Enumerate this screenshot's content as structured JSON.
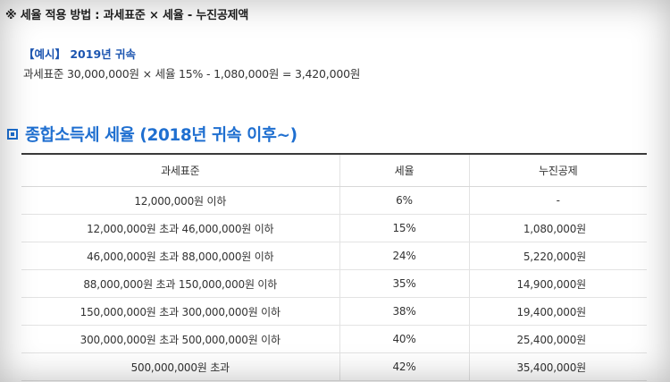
{
  "note": "※ 세율 적용 방법 : 과세표준 × 세율 - 누진공제액",
  "example": {
    "head": "【예시】 2019년 귀속",
    "formula": "과세표준 30,000,000원 × 세율 15% - 1,080,000원 = 3,420,000원"
  },
  "section_title": "종합소득세 세율 (2018년 귀속 이후~)",
  "table": {
    "headers": [
      "과세표준",
      "세율",
      "누진공제"
    ],
    "rows": [
      [
        "12,000,000원 이하",
        "6%",
        "-"
      ],
      [
        "12,000,000원 초과 46,000,000원 이하",
        "15%",
        "1,080,000원"
      ],
      [
        "46,000,000원 초과 88,000,000원 이하",
        "24%",
        "5,220,000원"
      ],
      [
        "88,000,000원 초과 150,000,000원 이하",
        "35%",
        "14,900,000원"
      ],
      [
        "150,000,000원 초과 300,000,000원 이하",
        "38%",
        "19,400,000원"
      ],
      [
        "300,000,000원 초과 500,000,000원 이하",
        "40%",
        "25,400,000원"
      ],
      [
        "500,000,000원 초과",
        "42%",
        "35,400,000원"
      ]
    ]
  },
  "colors": {
    "accent": "#1f6fd0",
    "example_head": "#1c55b0",
    "text": "#333333"
  }
}
